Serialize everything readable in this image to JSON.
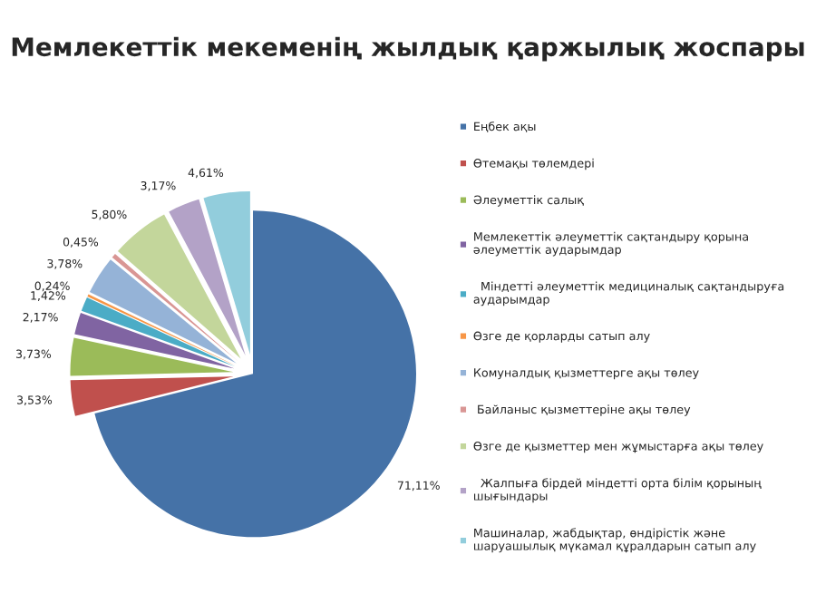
{
  "chart_data": {
    "type": "pie",
    "title": "Мемлекеттік мекеменің жылдық қаржылық жоспары",
    "categories": [
      "Еңбек ақы",
      "Өтемақы төлемдері",
      "Әлеуметтік салық",
      "Мемлекеттік әлеуметтік сақтандыру қорына\nәлеуметтік аударымдар",
      "  Міндетті әлеуметтік медициналық сақтандыруға\nаударымдар",
      "Өзге де қорларды сатып алу",
      "Комуналдық қызметтерге ақы төлеу",
      " Байланыс қызметтеріне ақы төлеу",
      "Өзге де қызметтер мен жұмыстарға ақы төлеу",
      "  Жалпыға бірдей міндетті орта білім қорының\nшығындары",
      "Машиналар, жабдықтар, өндірістік және\nшаруашылық мүкамал құралдарын сатып алу"
    ],
    "values": [
      71.11,
      3.53,
      3.73,
      2.17,
      1.42,
      0.24,
      3.78,
      0.45,
      5.8,
      3.17,
      4.61
    ],
    "value_labels": [
      "71,11%",
      "3,53%",
      "3,73%",
      "2,17%",
      "1,42%",
      "0,24%",
      "3,78%",
      "0,45%",
      "5,80%",
      "3,17%",
      "4,61%"
    ],
    "colors": [
      "#4572a7",
      "#c0504d",
      "#9bbb59",
      "#8064a2",
      "#4bacc6",
      "#f79646",
      "#95b3d7",
      "#d99694",
      "#c3d69b",
      "#b3a2c7",
      "#92cddc"
    ],
    "legend": "right"
  }
}
